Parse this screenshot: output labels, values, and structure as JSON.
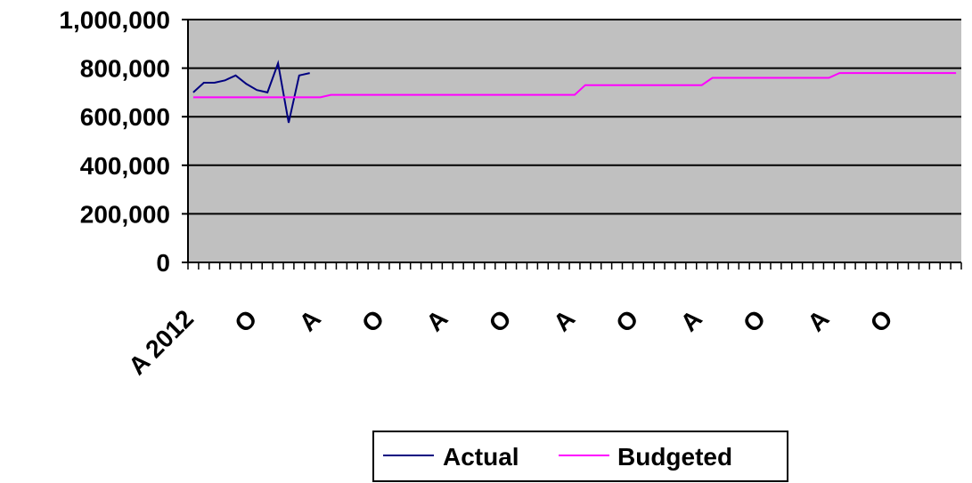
{
  "chart_data": {
    "type": "line",
    "title": "",
    "xlabel": "",
    "ylabel": "",
    "ylim": [
      0,
      1000000
    ],
    "y_ticks": [
      "0",
      "200,000",
      "400,000",
      "600,000",
      "800,000",
      "1,000,000"
    ],
    "x_tick_labels": [
      "A 2012",
      "O",
      "A",
      "O",
      "A",
      "O",
      "A",
      "O",
      "A",
      "O",
      "A",
      "O"
    ],
    "grid": "horizontal",
    "legend_position": "bottom",
    "plot_background": "#c0c0c0",
    "series": [
      {
        "name": "Actual",
        "color": "#000080",
        "values": [
          700000,
          740000,
          740000,
          750000,
          770000,
          735000,
          710000,
          700000,
          820000,
          575000,
          770000,
          780000
        ]
      },
      {
        "name": "Budgeted",
        "color": "#ff00ff",
        "values": [
          680000,
          680000,
          680000,
          680000,
          680000,
          680000,
          680000,
          680000,
          680000,
          680000,
          680000,
          680000,
          680000,
          690000,
          690000,
          690000,
          690000,
          690000,
          690000,
          690000,
          690000,
          690000,
          690000,
          690000,
          690000,
          690000,
          690000,
          690000,
          690000,
          690000,
          690000,
          690000,
          690000,
          690000,
          690000,
          690000,
          690000,
          730000,
          730000,
          730000,
          730000,
          730000,
          730000,
          730000,
          730000,
          730000,
          730000,
          730000,
          730000,
          760000,
          760000,
          760000,
          760000,
          760000,
          760000,
          760000,
          760000,
          760000,
          760000,
          760000,
          760000,
          780000,
          780000,
          780000,
          780000,
          780000,
          780000,
          780000,
          780000,
          780000,
          780000,
          780000,
          780000
        ]
      }
    ]
  }
}
